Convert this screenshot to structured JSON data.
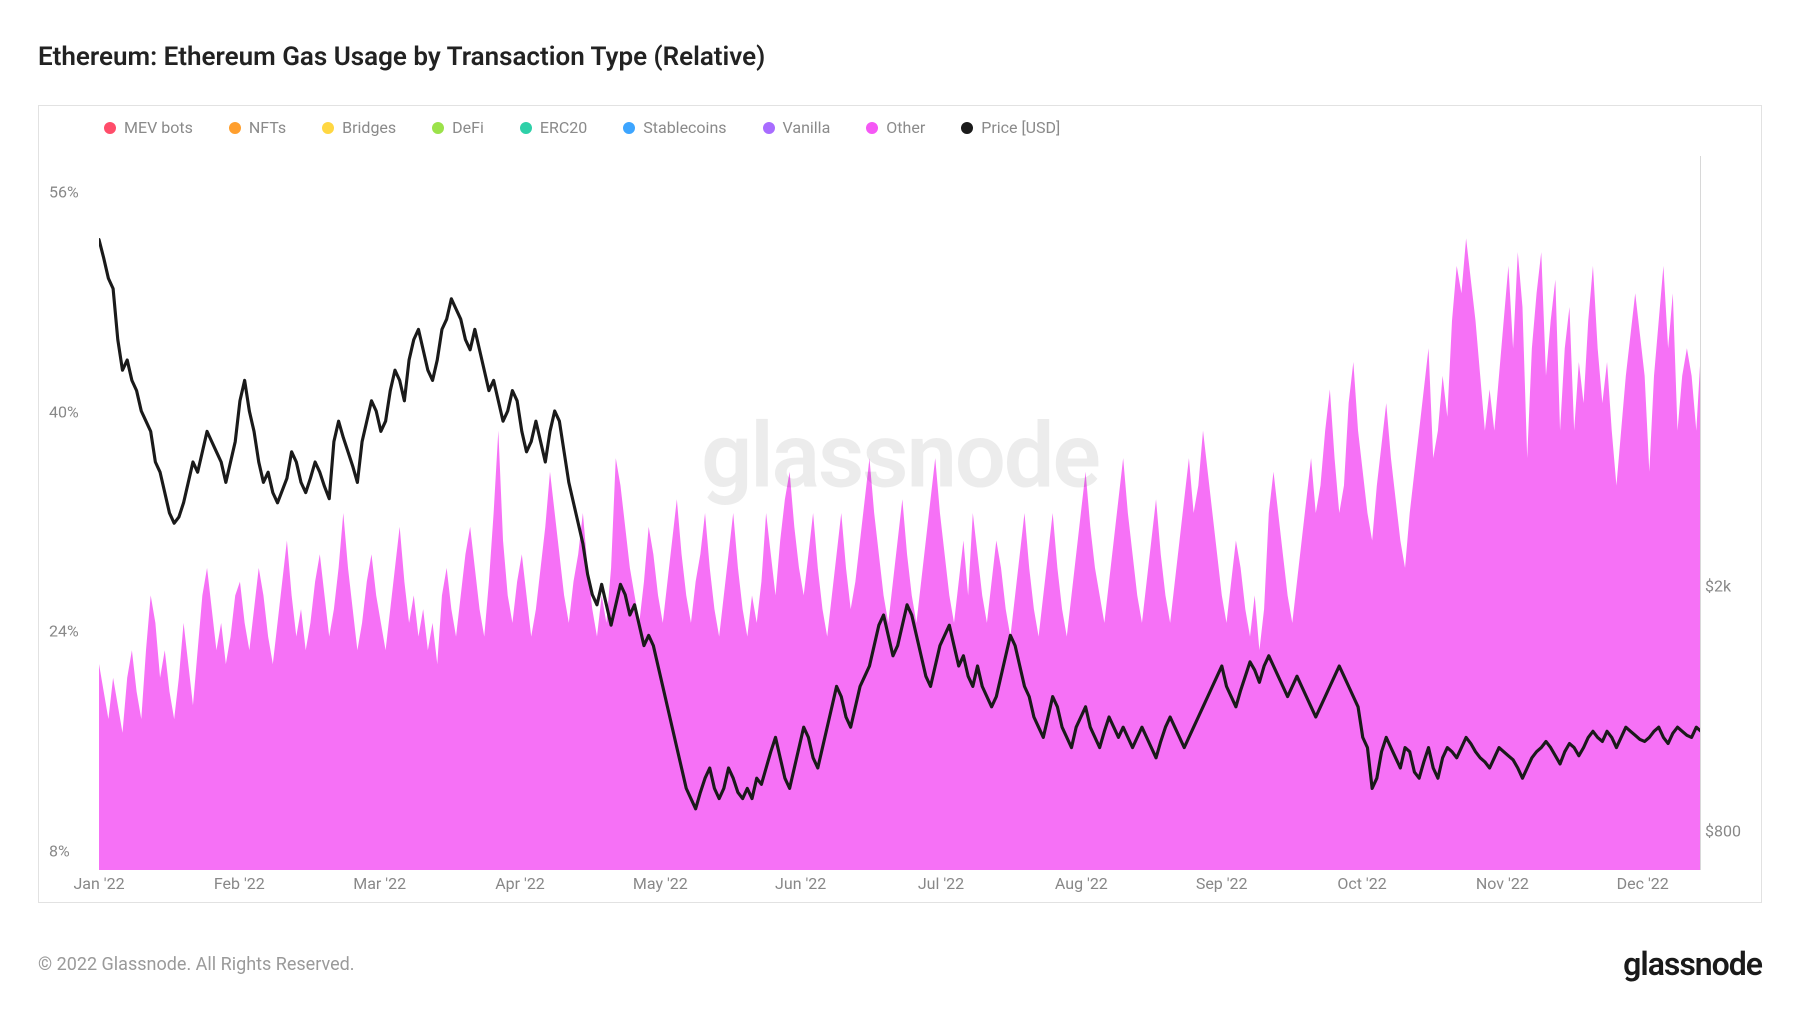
{
  "title": "Ethereum: Ethereum Gas Usage by Transaction Type (Relative)",
  "copyright": "© 2022 Glassnode. All Rights Reserved.",
  "brand": "glassnode",
  "watermark": "glassnode",
  "chart": {
    "type": "area+line",
    "background_color": "#ffffff",
    "frame_border_color": "#e2e2e2",
    "axis_label_color": "#888888",
    "axis_label_fontsize": 16,
    "title_fontsize": 26,
    "title_color": "#222222",
    "area_color": "#f558f5",
    "area_opacity": 0.85,
    "line_color": "#1a1a1a",
    "line_width": 2.2,
    "watermark_color": "#000000",
    "watermark_opacity": 0.07,
    "watermark_fontsize": 90,
    "x": {
      "ticks": [
        "Jan '22",
        "Feb '22",
        "Mar '22",
        "Apr '22",
        "May '22",
        "Jun '22",
        "Jul '22",
        "Aug '22",
        "Sep '22",
        "Oct '22",
        "Nov '22",
        "Dec '22"
      ],
      "tick_positions": [
        0.0,
        0.0876,
        0.1752,
        0.2628,
        0.3504,
        0.438,
        0.5256,
        0.6132,
        0.7008,
        0.7884,
        0.876,
        0.9636
      ],
      "lim": [
        0,
        1
      ]
    },
    "y_left": {
      "label_suffix": "%",
      "ticks": [
        8,
        24,
        40,
        56
      ],
      "lim": [
        8,
        60
      ]
    },
    "y_right": {
      "label_prefix": "$",
      "ticks": [
        800,
        2000
      ],
      "tick_labels": [
        "$800",
        "$2k"
      ],
      "lim": [
        700,
        4200
      ]
    },
    "legend": [
      {
        "label": "MEV bots",
        "color": "#ff4d6a"
      },
      {
        "label": "NFTs",
        "color": "#ff9f2e"
      },
      {
        "label": "Bridges",
        "color": "#ffd742"
      },
      {
        "label": "DeFi",
        "color": "#9be24a"
      },
      {
        "label": "ERC20",
        "color": "#2ed0a8"
      },
      {
        "label": "Stablecoins",
        "color": "#3da5ff"
      },
      {
        "label": "Vanilla",
        "color": "#a86cff"
      },
      {
        "label": "Other",
        "color": "#f558f5"
      },
      {
        "label": "Price [USD]",
        "color": "#1a1a1a"
      }
    ],
    "series": {
      "other_pct": [
        23,
        21,
        19,
        22,
        20,
        18,
        22,
        24,
        21,
        19,
        24,
        28,
        26,
        22,
        24,
        21,
        19,
        22,
        26,
        23,
        20,
        24,
        28,
        30,
        27,
        24,
        26,
        23,
        25,
        28,
        29,
        26,
        24,
        27,
        30,
        28,
        25,
        23,
        26,
        29,
        32,
        28,
        25,
        27,
        24,
        26,
        29,
        31,
        28,
        25,
        27,
        30,
        34,
        30,
        27,
        24,
        26,
        29,
        31,
        28,
        26,
        24,
        27,
        30,
        33,
        29,
        26,
        28,
        25,
        27,
        24,
        26,
        23,
        28,
        30,
        27,
        25,
        28,
        31,
        33,
        30,
        27,
        25,
        29,
        34,
        40,
        32,
        28,
        26,
        29,
        31,
        28,
        25,
        27,
        30,
        33,
        37,
        34,
        31,
        28,
        26,
        29,
        31,
        34,
        30,
        27,
        25,
        28,
        26,
        30,
        38,
        36,
        33,
        30,
        28,
        26,
        29,
        33,
        31,
        28,
        26,
        29,
        32,
        35,
        31,
        28,
        26,
        29,
        31,
        34,
        30,
        27,
        25,
        28,
        31,
        34,
        30,
        27,
        25,
        28,
        26,
        29,
        34,
        31,
        28,
        32,
        35,
        37,
        33,
        30,
        28,
        31,
        34,
        30,
        27,
        25,
        28,
        31,
        34,
        30,
        27,
        29,
        32,
        35,
        38,
        34,
        31,
        28,
        26,
        29,
        32,
        35,
        31,
        28,
        26,
        29,
        32,
        35,
        38,
        34,
        31,
        28,
        26,
        29,
        32,
        28,
        34,
        31,
        28,
        26,
        29,
        32,
        30,
        27,
        25,
        28,
        31,
        34,
        30,
        27,
        25,
        28,
        31,
        34,
        30,
        27,
        25,
        28,
        31,
        34,
        37,
        33,
        30,
        28,
        26,
        29,
        32,
        35,
        38,
        34,
        31,
        28,
        26,
        29,
        32,
        35,
        31,
        28,
        26,
        29,
        32,
        35,
        38,
        34,
        36,
        40,
        37,
        34,
        31,
        28,
        26,
        29,
        32,
        30,
        27,
        25,
        28,
        24,
        27,
        34,
        37,
        34,
        31,
        28,
        26,
        29,
        32,
        35,
        38,
        34,
        36,
        40,
        43,
        38,
        34,
        36,
        42,
        45,
        40,
        37,
        34,
        32,
        36,
        39,
        42,
        38,
        35,
        32,
        30,
        34,
        37,
        40,
        43,
        46,
        38,
        40,
        44,
        41,
        48,
        52,
        50,
        54,
        51,
        48,
        44,
        40,
        43,
        40,
        44,
        48,
        52,
        46,
        53,
        49,
        38,
        46,
        50,
        53,
        44,
        48,
        51,
        40,
        46,
        49,
        40,
        45,
        42,
        48,
        52,
        46,
        42,
        45,
        40,
        36,
        40,
        44,
        47,
        50,
        47,
        44,
        37,
        44,
        48,
        52,
        46,
        50,
        40,
        44,
        46,
        44,
        40,
        46
      ],
      "price_usd": [
        3790,
        3700,
        3600,
        3550,
        3300,
        3150,
        3200,
        3100,
        3050,
        2950,
        2900,
        2850,
        2700,
        2650,
        2550,
        2450,
        2400,
        2430,
        2500,
        2600,
        2700,
        2650,
        2750,
        2850,
        2800,
        2750,
        2700,
        2600,
        2700,
        2800,
        3000,
        3100,
        2950,
        2850,
        2700,
        2600,
        2650,
        2550,
        2500,
        2560,
        2620,
        2750,
        2700,
        2600,
        2550,
        2620,
        2700,
        2650,
        2580,
        2520,
        2800,
        2900,
        2820,
        2750,
        2680,
        2600,
        2800,
        2900,
        3000,
        2950,
        2850,
        2900,
        3050,
        3150,
        3100,
        3000,
        3200,
        3300,
        3350,
        3250,
        3150,
        3100,
        3200,
        3350,
        3400,
        3500,
        3450,
        3400,
        3300,
        3250,
        3350,
        3250,
        3150,
        3050,
        3100,
        3000,
        2900,
        2950,
        3050,
        3000,
        2850,
        2750,
        2800,
        2900,
        2800,
        2700,
        2850,
        2950,
        2900,
        2750,
        2600,
        2500,
        2400,
        2300,
        2150,
        2050,
        2000,
        2100,
        2000,
        1900,
        2000,
        2100,
        2050,
        1950,
        2000,
        1900,
        1800,
        1850,
        1800,
        1700,
        1600,
        1500,
        1400,
        1300,
        1200,
        1100,
        1050,
        1000,
        1080,
        1150,
        1200,
        1100,
        1050,
        1100,
        1200,
        1150,
        1080,
        1050,
        1100,
        1050,
        1150,
        1120,
        1200,
        1280,
        1350,
        1250,
        1150,
        1100,
        1200,
        1300,
        1400,
        1350,
        1250,
        1200,
        1300,
        1400,
        1500,
        1600,
        1550,
        1450,
        1400,
        1500,
        1600,
        1650,
        1700,
        1800,
        1900,
        1950,
        1850,
        1750,
        1800,
        1900,
        2000,
        1950,
        1850,
        1750,
        1650,
        1600,
        1700,
        1800,
        1850,
        1900,
        1800,
        1700,
        1750,
        1650,
        1600,
        1700,
        1600,
        1550,
        1500,
        1550,
        1650,
        1750,
        1850,
        1800,
        1700,
        1600,
        1550,
        1450,
        1400,
        1350,
        1450,
        1550,
        1500,
        1400,
        1350,
        1300,
        1400,
        1450,
        1500,
        1400,
        1350,
        1300,
        1380,
        1450,
        1400,
        1350,
        1400,
        1350,
        1300,
        1350,
        1400,
        1350,
        1300,
        1250,
        1330,
        1400,
        1450,
        1400,
        1350,
        1300,
        1350,
        1400,
        1450,
        1500,
        1550,
        1600,
        1650,
        1700,
        1600,
        1550,
        1500,
        1580,
        1650,
        1720,
        1680,
        1620,
        1700,
        1750,
        1700,
        1650,
        1600,
        1550,
        1600,
        1650,
        1600,
        1550,
        1500,
        1450,
        1500,
        1550,
        1600,
        1650,
        1700,
        1650,
        1600,
        1550,
        1500,
        1350,
        1300,
        1100,
        1150,
        1280,
        1350,
        1300,
        1250,
        1200,
        1300,
        1280,
        1180,
        1150,
        1230,
        1300,
        1200,
        1150,
        1250,
        1300,
        1280,
        1250,
        1300,
        1350,
        1320,
        1280,
        1250,
        1230,
        1200,
        1250,
        1300,
        1280,
        1260,
        1240,
        1200,
        1150,
        1200,
        1250,
        1280,
        1300,
        1330,
        1300,
        1260,
        1220,
        1280,
        1320,
        1300,
        1260,
        1300,
        1350,
        1380,
        1350,
        1330,
        1380,
        1350,
        1300,
        1350,
        1400,
        1380,
        1360,
        1340,
        1330,
        1350,
        1380,
        1400,
        1350,
        1320,
        1370,
        1400,
        1380,
        1360,
        1350,
        1400,
        1380
      ]
    }
  }
}
